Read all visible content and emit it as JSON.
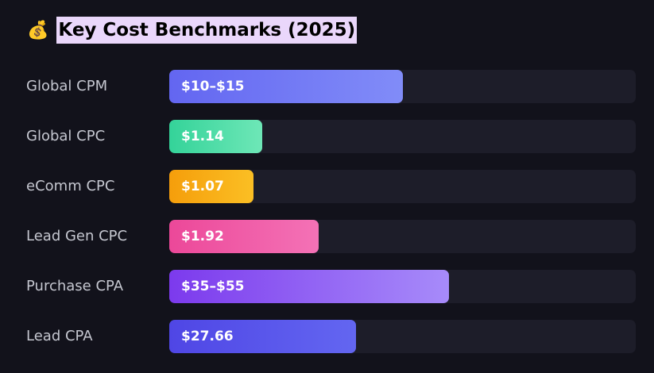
{
  "header": {
    "icon": "💰",
    "title": "Key Cost Benchmarks (2025)"
  },
  "rows": [
    {
      "label": "Global CPM",
      "value": "$10–$15",
      "fill": 50,
      "colors": [
        "#6366f1",
        "#818cf8"
      ]
    },
    {
      "label": "Global CPC",
      "value": "$1.14",
      "fill": 20,
      "colors": [
        "#34d399",
        "#6ee7b7"
      ]
    },
    {
      "label": "eComm CPC",
      "value": "$1.07",
      "fill": 18,
      "colors": [
        "#f59e0b",
        "#fbbf24"
      ]
    },
    {
      "label": "Lead Gen CPC",
      "value": "$1.92",
      "fill": 32,
      "colors": [
        "#ec4899",
        "#f472b6"
      ]
    },
    {
      "label": "Purchase CPA",
      "value": "$35–$55",
      "fill": 60,
      "colors": [
        "#7c3aed",
        "#a78bfa"
      ]
    },
    {
      "label": "Lead CPA",
      "value": "$27.66",
      "fill": 40,
      "colors": [
        "#4f46e5",
        "#6366f1"
      ]
    }
  ]
}
